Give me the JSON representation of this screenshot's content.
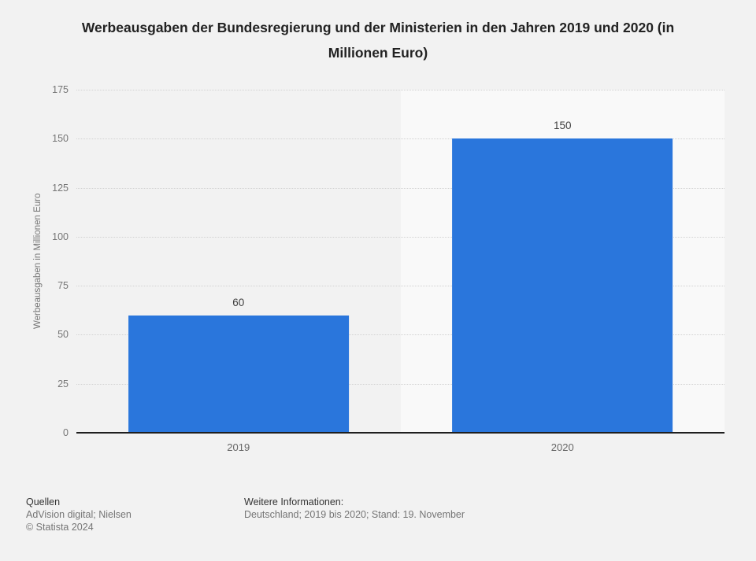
{
  "chart_data": {
    "type": "bar",
    "title": "Werbeausgaben der Bundesregierung und der Ministerien in den Jahren 2019 und 2020 (in Millionen Euro)",
    "categories": [
      "2019",
      "2020"
    ],
    "values": [
      60,
      150
    ],
    "xlabel": "",
    "ylabel": "Werbeausgaben in Millionen Euro",
    "ylim": [
      0,
      175
    ],
    "yticks": [
      0,
      25,
      50,
      75,
      100,
      125,
      150,
      175
    ],
    "grid": "horizontal-dotted",
    "legend": "none",
    "bar_color": "#2a76dc",
    "highlighted_category": "2020",
    "highlight_band_color": "#f9f9f9",
    "background_color": "#f2f2f2",
    "axis_line_color": "#1f1f1f",
    "tick_label_color": "#757575",
    "value_label_color": "#404040"
  },
  "footer": {
    "sources_label": "Quellen",
    "sources": "AdVision digital; Nielsen",
    "copyright": "© Statista 2024",
    "info_label": "Weitere Informationen:",
    "info": "Deutschland; 2019 bis 2020; Stand: 19. November"
  }
}
